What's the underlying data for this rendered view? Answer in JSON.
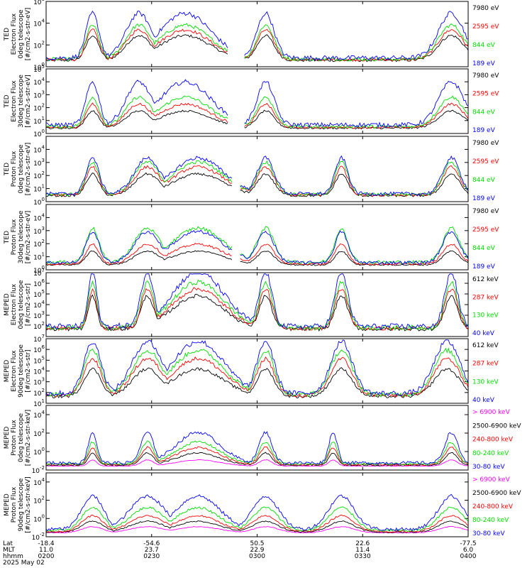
{
  "colors": {
    "blue": "#0000ff",
    "red": "#ff0000",
    "green": "#00dd00",
    "black": "#000000",
    "magenta": "#ff00ff",
    "frame": "#000000"
  },
  "time_axis": {
    "rows": [
      {
        "label": "Lat",
        "values": [
          "-18.4",
          "-54.6",
          "50.5",
          "22.6",
          "-77.5"
        ]
      },
      {
        "label": "MLT",
        "values": [
          "11.0",
          "23.7",
          "22.9",
          "11.4",
          "6.0"
        ]
      },
      {
        "label": "hhmm",
        "values": [
          "0200",
          "0230",
          "0300",
          "0330",
          "0400"
        ]
      }
    ],
    "date": "2025 May 02"
  },
  "chart_data": [
    {
      "type": "line",
      "ylabel_lines": [
        "TED",
        "Electron Flux",
        "0deg telescope",
        "[#/cm2-s-str-eV]"
      ],
      "yscale": "log",
      "ylim": [
        1,
        1000000
      ],
      "yticks": [
        {
          "base": "10",
          "exp": "0"
        },
        {
          "base": "10",
          "exp": "2"
        },
        {
          "base": "10",
          "exp": "4"
        },
        {
          "base": "10",
          "exp": "6"
        }
      ],
      "x": [
        "0200",
        "0230",
        "0300",
        "0330",
        "0400"
      ],
      "series": [
        {
          "name": "7980 eV",
          "color": "black",
          "profile": "ted_e",
          "level": 0.4
        },
        {
          "name": "2595 eV",
          "color": "red",
          "profile": "ted_e",
          "level": 0.48
        },
        {
          "name": "844 eV",
          "color": "green",
          "profile": "ted_e",
          "level": 0.55
        },
        {
          "name": "189 eV",
          "color": "blue",
          "profile": "ted_e",
          "level": 0.72
        }
      ]
    },
    {
      "type": "line",
      "ylabel_lines": [
        "TED",
        "Electron Flux",
        "30deg telescope",
        "[#/cm2-s-str-eV]"
      ],
      "yscale": "log",
      "ylim": [
        1,
        100000
      ],
      "yticks": [
        {
          "base": "10",
          "exp": "0"
        },
        {
          "base": "10",
          "exp": "1"
        },
        {
          "base": "10",
          "exp": "2"
        },
        {
          "base": "10",
          "exp": "3"
        },
        {
          "base": "10",
          "exp": "4"
        },
        {
          "base": "10",
          "exp": "5"
        }
      ],
      "x": [
        "0200",
        "0230",
        "0300",
        "0330",
        "0400"
      ],
      "series": [
        {
          "name": "7980 eV",
          "color": "black",
          "profile": "ted_e",
          "level": 0.28
        },
        {
          "name": "2595 eV",
          "color": "red",
          "profile": "ted_e",
          "level": 0.38
        },
        {
          "name": "844 eV",
          "color": "green",
          "profile": "ted_e",
          "level": 0.48
        },
        {
          "name": "189 eV",
          "color": "blue",
          "profile": "ted_e",
          "level": 0.7
        }
      ]
    },
    {
      "type": "line",
      "ylabel_lines": [
        "TED",
        "Proton Flux",
        "0deg telescope",
        "[#/cm2-s-str-eV]"
      ],
      "yscale": "log",
      "ylim": [
        1,
        100000
      ],
      "yticks": [
        {
          "base": "10",
          "exp": "0"
        },
        {
          "base": "10",
          "exp": "1"
        },
        {
          "base": "10",
          "exp": "2"
        },
        {
          "base": "10",
          "exp": "3"
        },
        {
          "base": "10",
          "exp": "4"
        }
      ],
      "x": [
        "0200",
        "0230",
        "0300",
        "0330",
        "0400"
      ],
      "series": [
        {
          "name": "7980 eV",
          "color": "black",
          "profile": "ted_p",
          "level": 0.35
        },
        {
          "name": "2595 eV",
          "color": "red",
          "profile": "ted_p",
          "level": 0.45
        },
        {
          "name": "844 eV",
          "color": "green",
          "profile": "ted_p",
          "level": 0.52
        },
        {
          "name": "189 eV",
          "color": "blue",
          "profile": "ted_p",
          "level": 0.58
        }
      ]
    },
    {
      "type": "line",
      "ylabel_lines": [
        "TED",
        "Proton Flux",
        "30deg telescope",
        "[#/cm2-s-str-eV]"
      ],
      "yscale": "log",
      "ylim": [
        1,
        100000
      ],
      "yticks": [
        {
          "base": "10",
          "exp": "0"
        },
        {
          "base": "10",
          "exp": "1"
        },
        {
          "base": "10",
          "exp": "2"
        },
        {
          "base": "10",
          "exp": "3"
        },
        {
          "base": "10",
          "exp": "4"
        }
      ],
      "x": [
        "0200",
        "0230",
        "0300",
        "0330",
        "0400"
      ],
      "series": [
        {
          "name": "7980 eV",
          "color": "black",
          "profile": "ted_p",
          "level": 0.22
        },
        {
          "name": "2595 eV",
          "color": "red",
          "profile": "ted_p",
          "level": 0.32
        },
        {
          "name": "844 eV",
          "color": "green",
          "profile": "ted_p",
          "level": 0.55
        },
        {
          "name": "189 eV",
          "color": "blue",
          "profile": "ted_p",
          "level": 0.5
        }
      ]
    },
    {
      "type": "line",
      "ylabel_lines": [
        "MEPED",
        "Electron Flux",
        "0deg telescope",
        "[#/cm2-s-str]"
      ],
      "yscale": "log",
      "ylim": [
        10,
        10000000
      ],
      "yticks": [
        {
          "base": "10",
          "exp": "2"
        },
        {
          "base": "10",
          "exp": "3"
        },
        {
          "base": "10",
          "exp": "4"
        },
        {
          "base": "10",
          "exp": "5"
        },
        {
          "base": "10",
          "exp": "6"
        },
        {
          "base": "10",
          "exp": "7"
        }
      ],
      "x": [
        "0200",
        "0230",
        "0300",
        "0330",
        "0400"
      ],
      "series": [
        {
          "name": "612 keV",
          "color": "black",
          "profile": "meped_e",
          "level": 0.55
        },
        {
          "name": "287 keV",
          "color": "red",
          "profile": "meped_e",
          "level": 0.65
        },
        {
          "name": "130 keV",
          "color": "green",
          "profile": "meped_e",
          "level": 0.75
        },
        {
          "name": "40 keV",
          "color": "blue",
          "profile": "meped_e",
          "level": 0.9
        }
      ]
    },
    {
      "type": "line",
      "ylabel_lines": [
        "MEPED",
        "Electron Flux",
        "90deg telescope",
        "[#/cm2-s-str]"
      ],
      "yscale": "log",
      "ylim": [
        10,
        10000000
      ],
      "yticks": [
        {
          "base": "10",
          "exp": "1"
        },
        {
          "base": "10",
          "exp": "2"
        },
        {
          "base": "10",
          "exp": "3"
        },
        {
          "base": "10",
          "exp": "4"
        },
        {
          "base": "10",
          "exp": "5"
        },
        {
          "base": "10",
          "exp": "6"
        },
        {
          "base": "10",
          "exp": "7"
        }
      ],
      "x": [
        "0200",
        "0230",
        "0300",
        "0330",
        "0400"
      ],
      "series": [
        {
          "name": "612 keV",
          "color": "black",
          "profile": "meped_e90",
          "level": 0.45
        },
        {
          "name": "287 keV",
          "color": "red",
          "profile": "meped_e90",
          "level": 0.6
        },
        {
          "name": "130 keV",
          "color": "green",
          "profile": "meped_e90",
          "level": 0.72
        },
        {
          "name": "40 keV",
          "color": "blue",
          "profile": "meped_e90",
          "level": 0.85
        }
      ]
    },
    {
      "type": "line",
      "ylabel_lines": [
        "MEPED",
        "Proton Flux",
        "0deg telescope",
        "[#/cm2-s-str-keV]"
      ],
      "yscale": "log",
      "ylim": [
        0.01,
        100000
      ],
      "yticks": [
        {
          "base": "10",
          "exp": "-2"
        },
        {
          "base": "10",
          "exp": "0"
        },
        {
          "base": "10",
          "exp": "2"
        },
        {
          "base": "10",
          "exp": "4"
        }
      ],
      "x": [
        "0200",
        "0230",
        "0300",
        "0330",
        "0400"
      ],
      "series": [
        {
          "name": "> 6900 keV",
          "color": "magenta",
          "profile": "meped_p",
          "level": 0.1
        },
        {
          "name": "2500-6900 keV",
          "color": "black",
          "profile": "meped_p",
          "level": 0.2
        },
        {
          "name": "240-800 keV",
          "color": "red",
          "profile": "meped_p",
          "level": 0.28
        },
        {
          "name": "80-240 keV",
          "color": "green",
          "profile": "meped_p",
          "level": 0.36
        },
        {
          "name": "30-80 keV",
          "color": "blue",
          "profile": "meped_p",
          "level": 0.5
        }
      ]
    },
    {
      "type": "line",
      "ylabel_lines": [
        "MEPED",
        "Proton Flux",
        "90deg telescope",
        "[#/cm2-s-str-keV]"
      ],
      "yscale": "log",
      "ylim": [
        0.01,
        100000
      ],
      "yticks": [
        {
          "base": "10",
          "exp": "-2"
        },
        {
          "base": "10",
          "exp": "0"
        },
        {
          "base": "10",
          "exp": "2"
        },
        {
          "base": "10",
          "exp": "4"
        }
      ],
      "x": [
        "0200",
        "0230",
        "0300",
        "0330",
        "0400"
      ],
      "series": [
        {
          "name": "> 6900 keV",
          "color": "magenta",
          "profile": "meped_p90",
          "level": 0.1
        },
        {
          "name": "2500-6900 keV",
          "color": "black",
          "profile": "meped_p90",
          "level": 0.18
        },
        {
          "name": "240-800 keV",
          "color": "red",
          "profile": "meped_p90",
          "level": 0.26
        },
        {
          "name": "80-240 keV",
          "color": "green",
          "profile": "meped_p90",
          "level": 0.38
        },
        {
          "name": "30-80 keV",
          "color": "blue",
          "profile": "meped_p90",
          "level": 0.55
        }
      ]
    }
  ]
}
